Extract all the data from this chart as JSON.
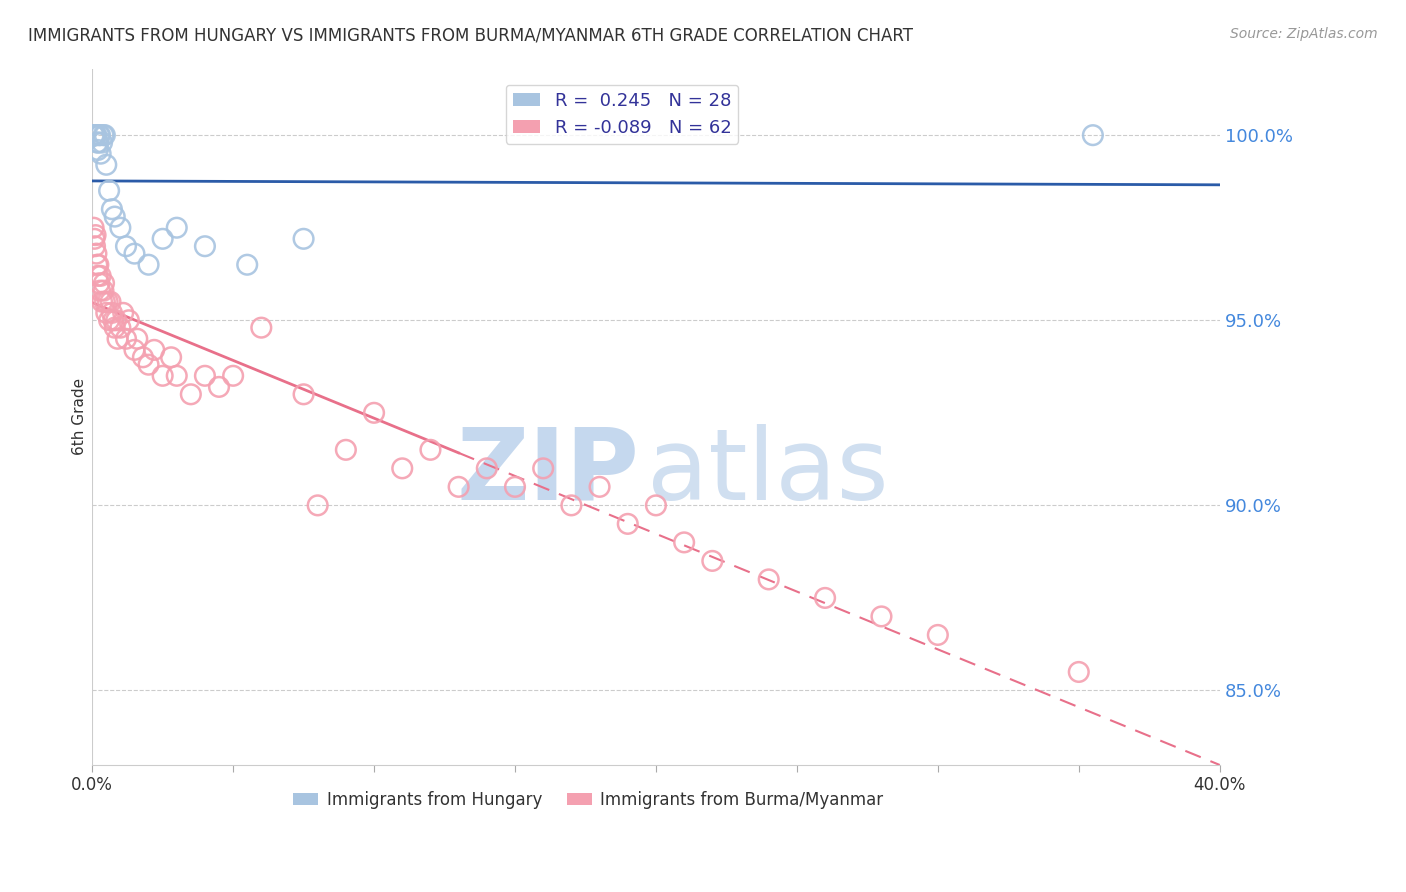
{
  "title": "IMMIGRANTS FROM HUNGARY VS IMMIGRANTS FROM BURMA/MYANMAR 6TH GRADE CORRELATION CHART",
  "source": "Source: ZipAtlas.com",
  "ylabel": "6th Grade",
  "right_yticks": [
    85.0,
    90.0,
    95.0,
    100.0
  ],
  "xlim": [
    0.0,
    40.0
  ],
  "ylim": [
    83.0,
    101.8
  ],
  "hungary_R": 0.245,
  "hungary_N": 28,
  "burma_R": -0.089,
  "burma_N": 62,
  "hungary_color": "#A8C4E0",
  "burma_color": "#F4A0B0",
  "hungary_trend_color": "#2B5BA8",
  "burma_trend_color": "#E8708A",
  "hungary_legend_color": "#A8C4E0",
  "burma_legend_color": "#F4A0B0",
  "hungary_points_x": [
    0.05,
    0.08,
    0.1,
    0.12,
    0.15,
    0.18,
    0.2,
    0.22,
    0.25,
    0.28,
    0.3,
    0.35,
    0.4,
    0.45,
    0.5,
    0.6,
    0.7,
    0.8,
    1.0,
    1.2,
    1.5,
    2.0,
    2.5,
    3.0,
    4.0,
    5.5,
    7.5,
    35.5
  ],
  "hungary_points_y": [
    100.0,
    100.0,
    100.0,
    100.0,
    100.0,
    99.8,
    99.6,
    99.8,
    100.0,
    100.0,
    99.5,
    99.8,
    100.0,
    100.0,
    99.2,
    98.5,
    98.0,
    97.8,
    97.5,
    97.0,
    96.8,
    96.5,
    97.2,
    97.5,
    97.0,
    96.5,
    97.2,
    100.0
  ],
  "burma_points_x": [
    0.05,
    0.08,
    0.1,
    0.12,
    0.15,
    0.18,
    0.2,
    0.22,
    0.25,
    0.28,
    0.3,
    0.35,
    0.4,
    0.42,
    0.45,
    0.5,
    0.55,
    0.6,
    0.65,
    0.7,
    0.75,
    0.8,
    0.85,
    0.9,
    1.0,
    1.1,
    1.2,
    1.3,
    1.5,
    1.6,
    1.8,
    2.0,
    2.2,
    2.5,
    2.8,
    3.0,
    3.5,
    4.0,
    4.5,
    5.0,
    6.0,
    7.5,
    8.0,
    9.0,
    10.0,
    11.0,
    12.0,
    13.0,
    14.0,
    15.0,
    16.0,
    17.0,
    18.0,
    19.0,
    20.0,
    21.0,
    22.0,
    24.0,
    26.0,
    28.0,
    30.0,
    35.0
  ],
  "burma_points_y": [
    97.5,
    97.2,
    97.0,
    97.3,
    96.8,
    96.5,
    96.2,
    96.5,
    96.0,
    95.8,
    96.2,
    95.5,
    95.8,
    96.0,
    95.5,
    95.2,
    95.5,
    95.0,
    95.5,
    95.2,
    95.0,
    94.8,
    95.0,
    94.5,
    94.8,
    95.2,
    94.5,
    95.0,
    94.2,
    94.5,
    94.0,
    93.8,
    94.2,
    93.5,
    94.0,
    93.5,
    93.0,
    93.5,
    93.2,
    93.5,
    94.8,
    93.0,
    90.0,
    91.5,
    92.5,
    91.0,
    91.5,
    90.5,
    91.0,
    90.5,
    91.0,
    90.0,
    90.5,
    89.5,
    90.0,
    89.0,
    88.5,
    88.0,
    87.5,
    87.0,
    86.5,
    85.5
  ],
  "watermark_text_zip": "ZIP",
  "watermark_text_atlas": "atlas",
  "background_color": "#FFFFFF",
  "grid_color": "#CCCCCC"
}
